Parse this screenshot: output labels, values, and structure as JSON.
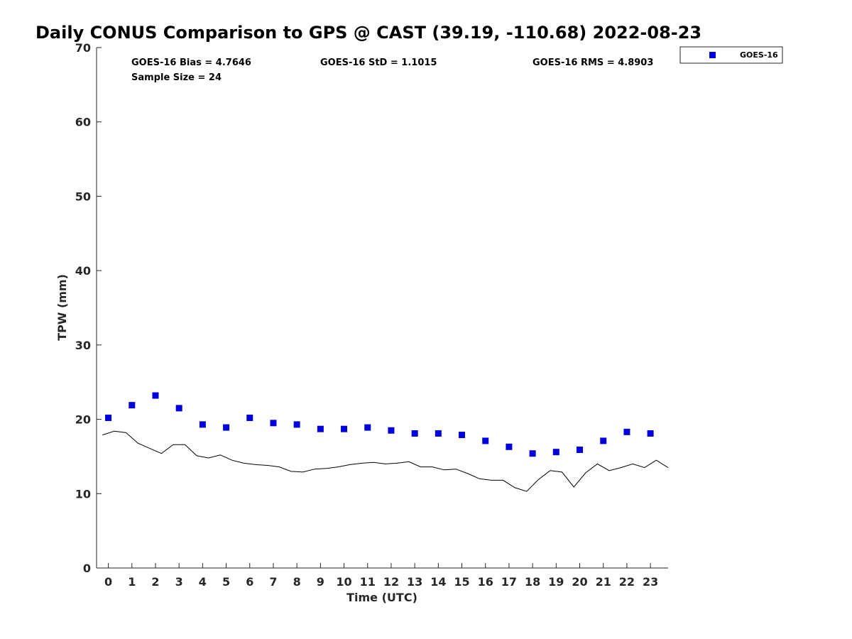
{
  "chart_data": {
    "type": "scatter",
    "title": "Daily CONUS Comparison to GPS @ CAST (39.19, -110.68) 2022-08-23",
    "xlabel": "Time (UTC)",
    "ylabel": "TPW (mm)",
    "xlim": [
      -0.5,
      23.75
    ],
    "ylim": [
      0,
      70
    ],
    "xticks": [
      0,
      1,
      2,
      3,
      4,
      5,
      6,
      7,
      8,
      9,
      10,
      11,
      12,
      13,
      14,
      15,
      16,
      17,
      18,
      19,
      20,
      21,
      22,
      23
    ],
    "yticks": [
      0,
      10,
      20,
      30,
      40,
      50,
      60,
      70
    ],
    "grid": false,
    "legend_position": "outside-top-right",
    "stats": {
      "bias": "GOES-16 Bias = 4.7646",
      "std": "GOES-16 StD = 1.1015",
      "rms": "GOES-16 RMS = 4.8903",
      "sample": "Sample Size = 24"
    },
    "series": [
      {
        "name": "GOES-16",
        "kind": "markers",
        "color": "#0000dd",
        "x": [
          0,
          1,
          2,
          3,
          4,
          5,
          6,
          7,
          8,
          9,
          10,
          11,
          12,
          13,
          14,
          15,
          16,
          17,
          18,
          19,
          20,
          21,
          22,
          23
        ],
        "y": [
          20.2,
          21.9,
          23.2,
          21.5,
          19.3,
          18.9,
          20.2,
          19.5,
          19.3,
          18.7,
          18.7,
          18.9,
          18.5,
          18.1,
          18.1,
          17.9,
          17.1,
          16.3,
          15.4,
          15.6,
          15.9,
          17.1,
          18.3,
          18.1
        ]
      },
      {
        "kind": "line",
        "color": "#000000",
        "x": [
          -0.25,
          0.25,
          0.75,
          1.25,
          1.75,
          2.25,
          2.75,
          3.25,
          3.75,
          4.25,
          4.75,
          5.25,
          5.75,
          6.25,
          6.75,
          7.25,
          7.75,
          8.25,
          8.75,
          9.25,
          9.75,
          10.25,
          10.75,
          11.25,
          11.75,
          12.25,
          12.75,
          13.25,
          13.75,
          14.25,
          14.75,
          15.25,
          15.75,
          16.25,
          16.75,
          17.25,
          17.75,
          18.25,
          18.75,
          19.25,
          19.75,
          20.25,
          20.75,
          21.25,
          21.75,
          22.25,
          22.75,
          23.25,
          23.75
        ],
        "y": [
          17.9,
          18.4,
          18.2,
          16.8,
          16.1,
          15.4,
          16.6,
          16.6,
          15.1,
          14.8,
          15.2,
          14.5,
          14.1,
          13.9,
          13.8,
          13.6,
          13.0,
          12.9,
          13.3,
          13.4,
          13.6,
          13.9,
          14.1,
          14.2,
          14.0,
          14.1,
          14.3,
          13.6,
          13.6,
          13.2,
          13.3,
          12.7,
          12.0,
          11.8,
          11.8,
          10.8,
          10.3,
          11.9,
          13.1,
          12.9,
          10.9,
          12.8,
          14.0,
          13.1,
          13.5,
          14.0,
          13.5,
          14.5,
          13.5
        ]
      }
    ]
  }
}
